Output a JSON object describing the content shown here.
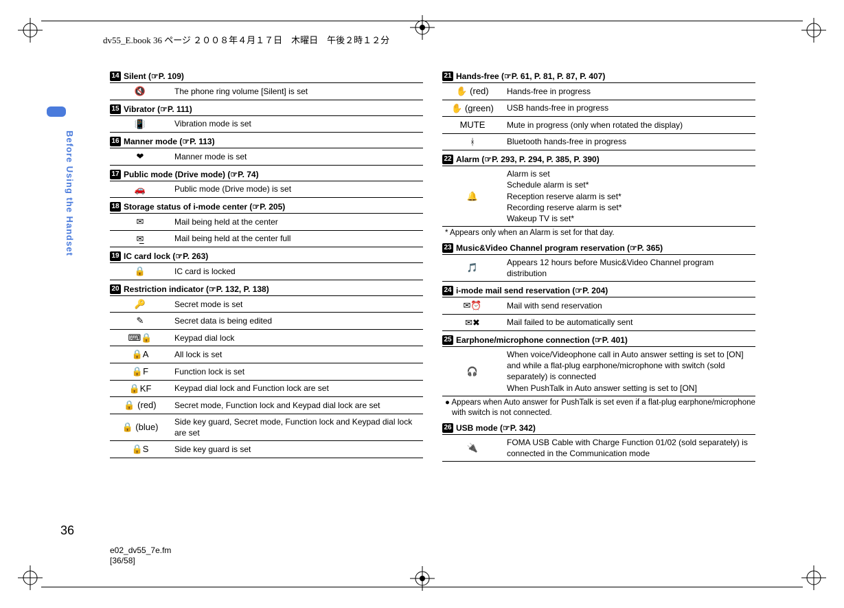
{
  "header": "dv55_E.book  36 ページ  ２００８年４月１７日　木曜日　午後２時１２分",
  "sidebar": "Before Using the Handset",
  "page_number": "36",
  "footer_file": "e02_dv55_7e.fm",
  "footer_pos": "[36/58]",
  "marker_num_color_style": "black",
  "sections": [
    {
      "num": "14",
      "title": "Silent (☞P. 109)",
      "rows": [
        {
          "icon": "🔇",
          "desc": "The phone ring volume [Silent] is set"
        }
      ]
    },
    {
      "num": "15",
      "title": "Vibrator (☞P. 111)",
      "rows": [
        {
          "icon": "📳",
          "desc": "Vibration mode is set"
        }
      ]
    },
    {
      "num": "16",
      "title": "Manner mode (☞P. 113)",
      "rows": [
        {
          "icon": "❤",
          "desc": "Manner mode is set"
        }
      ]
    },
    {
      "num": "17",
      "title": "Public mode (Drive mode) (☞P. 74)",
      "rows": [
        {
          "icon": "🚗",
          "desc": "Public mode (Drive mode) is set"
        }
      ]
    },
    {
      "num": "18",
      "title": "Storage status of i-mode center (☞P. 205)",
      "rows": [
        {
          "icon": "✉",
          "desc": "Mail being held at the center"
        },
        {
          "icon": "✉̲",
          "desc": "Mail being held at the center full"
        }
      ]
    },
    {
      "num": "19",
      "title": "IC card lock (☞P. 263)",
      "rows": [
        {
          "icon": "🔒",
          "desc": "IC card is locked"
        }
      ]
    },
    {
      "num": "20",
      "title": "Restriction indicator (☞P. 132, P. 138)",
      "rows": [
        {
          "icon": "🔑",
          "desc": "Secret mode is set"
        },
        {
          "icon": "✎",
          "desc": "Secret data is being edited"
        },
        {
          "icon": "⌨🔒",
          "desc": "Keypad dial lock"
        },
        {
          "icon": "🔒A",
          "desc": "All lock is set"
        },
        {
          "icon": "🔒F",
          "desc": "Function lock is set"
        },
        {
          "icon": "🔒KF",
          "desc": "Keypad dial lock and Function lock are set"
        },
        {
          "icon": "🔒 (red)",
          "desc": "Secret mode, Function lock and Keypad dial lock are set"
        },
        {
          "icon": "🔒 (blue)",
          "desc": "Side key guard, Secret mode, Function lock and Keypad dial lock are set"
        },
        {
          "icon": "🔒S",
          "desc": "Side key guard is set"
        }
      ]
    }
  ],
  "sections_right": [
    {
      "num": "21",
      "title": "Hands-free (☞P. 61, P. 81, P. 87, P. 407)",
      "rows": [
        {
          "icon": "✋ (red)",
          "desc": "Hands-free in progress"
        },
        {
          "icon": "✋ (green)",
          "desc": "USB hands-free in progress"
        },
        {
          "icon": "MUTE",
          "desc": "Mute in progress (only when rotated the display)"
        },
        {
          "icon": "ᚼ",
          "desc": "Bluetooth hands-free in progress"
        }
      ]
    },
    {
      "num": "22",
      "title": "Alarm (☞P. 293, P. 294, P. 385, P. 390)",
      "rows": [
        {
          "icon": "🔔",
          "desc": "Alarm is set\nSchedule alarm is set*\nReception reserve alarm is set*\nRecording reserve alarm is set*\nWakeup TV is set*"
        }
      ],
      "note": "* Appears only when an Alarm is set for that day."
    },
    {
      "num": "23",
      "title": "Music&Video Channel program reservation (☞P. 365)",
      "rows": [
        {
          "icon": "🎵",
          "desc": "Appears 12 hours before Music&Video Channel program distribution"
        }
      ]
    },
    {
      "num": "24",
      "title": "i-mode mail send reservation (☞P. 204)",
      "rows": [
        {
          "icon": "✉⏰",
          "desc": "Mail with send reservation"
        },
        {
          "icon": "✉✖",
          "desc": "Mail failed to be automatically sent"
        }
      ]
    },
    {
      "num": "25",
      "title": "Earphone/microphone connection (☞P. 401)",
      "rows": [
        {
          "icon": "🎧",
          "desc": "When voice/Videophone call in Auto answer setting is set to [ON] and while a flat-plug earphone/microphone with switch (sold separately) is connected\nWhen PushTalk in Auto answer setting is set to [ON]"
        }
      ],
      "note": "● Appears when Auto answer for PushTalk is set even if a flat-plug earphone/microphone with switch is not connected."
    },
    {
      "num": "26",
      "title": "USB mode (☞P. 342)",
      "rows": [
        {
          "icon": "🔌",
          "desc": "FOMA USB Cable with Charge Function 01/02 (sold separately) is connected in the Communication mode"
        }
      ]
    }
  ]
}
